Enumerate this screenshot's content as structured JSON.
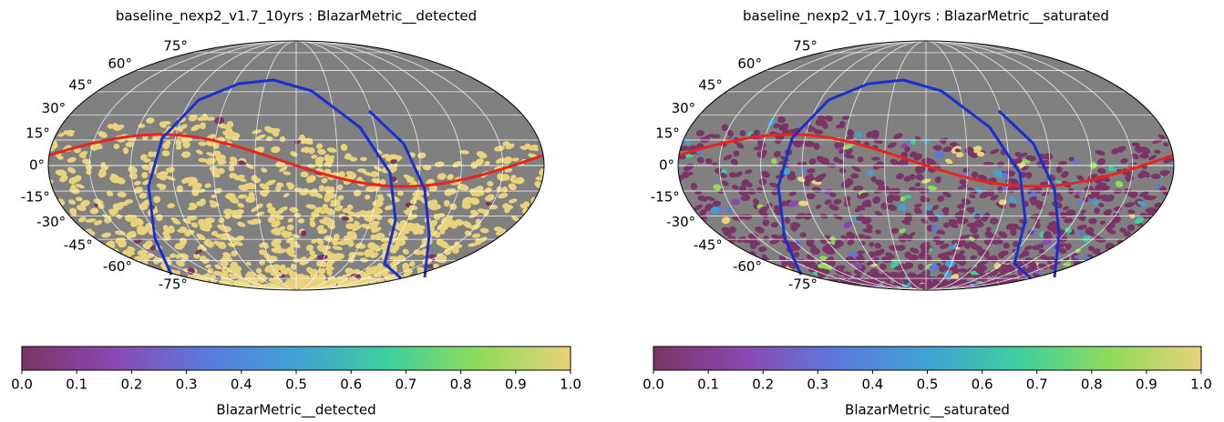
{
  "chart_data": [
    {
      "type": "skymap",
      "title": "baseline_nexp2_v1.7_10yrs : BlazarMetric__detected",
      "latticks": [
        {
          "value": 75,
          "label": "75°"
        },
        {
          "value": 60,
          "label": "60°"
        },
        {
          "value": 45,
          "label": "45°"
        },
        {
          "value": 30,
          "label": "30°"
        },
        {
          "value": 15,
          "label": "15°"
        },
        {
          "value": 0,
          "label": "0°"
        },
        {
          "value": -15,
          "label": "-15°"
        },
        {
          "value": -30,
          "label": "-30°"
        },
        {
          "value": -45,
          "label": "-45°"
        },
        {
          "value": -60,
          "label": "-60°"
        },
        {
          "value": -75,
          "label": "-75°"
        }
      ],
      "clim": [
        0,
        1
      ],
      "cticks": [
        {
          "value": 0,
          "label": "0.0"
        },
        {
          "value": 0.1,
          "label": "0.1"
        },
        {
          "value": 0.2,
          "label": "0.2"
        },
        {
          "value": 0.3,
          "label": "0.3"
        },
        {
          "value": 0.4,
          "label": "0.4"
        },
        {
          "value": 0.5,
          "label": "0.5"
        },
        {
          "value": 0.6,
          "label": "0.6"
        },
        {
          "value": 0.7,
          "label": "0.7"
        },
        {
          "value": 0.8,
          "label": "0.8"
        },
        {
          "value": 0.9,
          "label": "0.9"
        },
        {
          "value": 1,
          "label": "1.0"
        }
      ],
      "colorbar_label": "BlazarMetric__detected",
      "colormap": [
        "#7a3566",
        "#8a48b0",
        "#5c79dd",
        "#3fa2d4",
        "#3dcf9e",
        "#90dc5a",
        "#e8d27a"
      ]
    },
    {
      "type": "skymap",
      "title": "baseline_nexp2_v1.7_10yrs : BlazarMetric__saturated",
      "latticks": [
        {
          "value": 75,
          "label": "75°"
        },
        {
          "value": 60,
          "label": "60°"
        },
        {
          "value": 45,
          "label": "45°"
        },
        {
          "value": 30,
          "label": "30°"
        },
        {
          "value": 15,
          "label": "15°"
        },
        {
          "value": 0,
          "label": "0°"
        },
        {
          "value": -15,
          "label": "-15°"
        },
        {
          "value": -30,
          "label": "-30°"
        },
        {
          "value": -45,
          "label": "-45°"
        },
        {
          "value": -60,
          "label": "-60°"
        },
        {
          "value": -75,
          "label": "-75°"
        }
      ],
      "clim": [
        0,
        1
      ],
      "cticks": [
        {
          "value": 0,
          "label": "0.0"
        },
        {
          "value": 0.1,
          "label": "0.1"
        },
        {
          "value": 0.2,
          "label": "0.2"
        },
        {
          "value": 0.3,
          "label": "0.3"
        },
        {
          "value": 0.4,
          "label": "0.4"
        },
        {
          "value": 0.5,
          "label": "0.5"
        },
        {
          "value": 0.6,
          "label": "0.6"
        },
        {
          "value": 0.7,
          "label": "0.7"
        },
        {
          "value": 0.8,
          "label": "0.8"
        },
        {
          "value": 0.9,
          "label": "0.9"
        },
        {
          "value": 1,
          "label": "1.0"
        }
      ],
      "colorbar_label": "BlazarMetric__saturated",
      "colormap": [
        "#7a3566",
        "#8a48b0",
        "#5c79dd",
        "#3fa2d4",
        "#3dcf9e",
        "#90dc5a",
        "#e8d27a"
      ]
    }
  ]
}
